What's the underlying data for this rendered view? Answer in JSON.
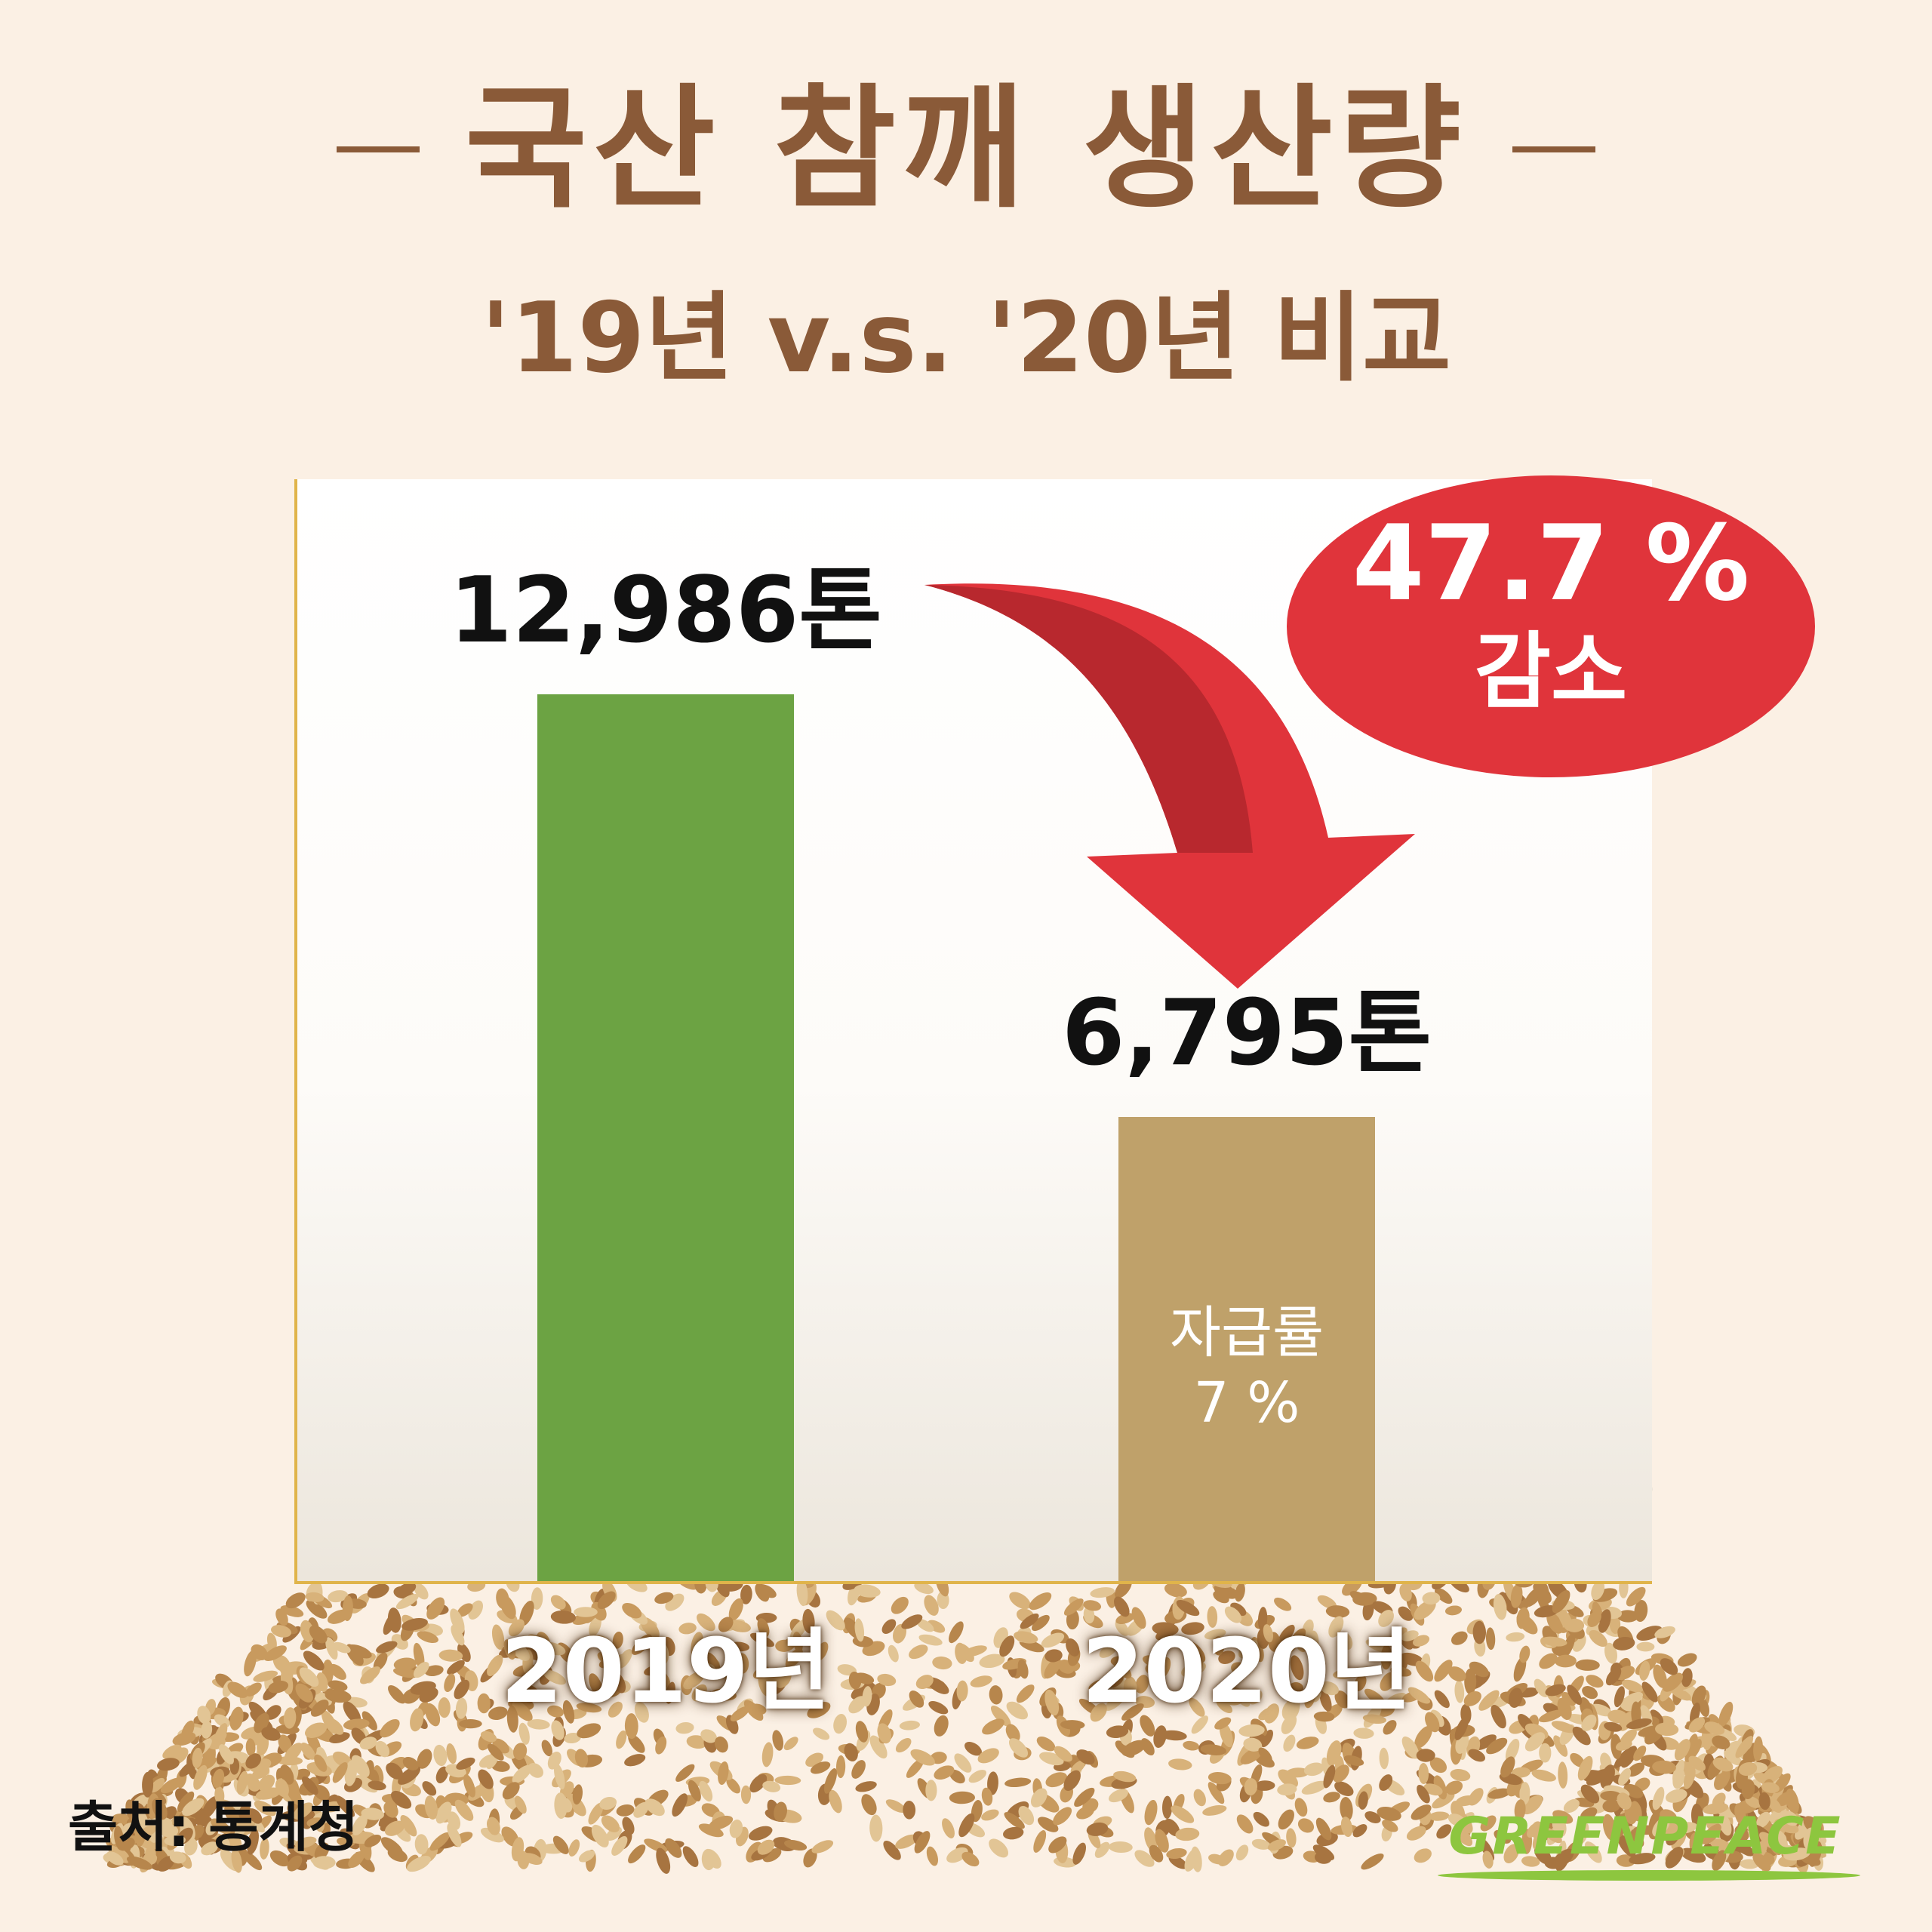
{
  "header": {
    "title_dash": "–",
    "title": "국산 참깨 생산량",
    "subtitle": "'19년 v.s. '20년 비교"
  },
  "callout": {
    "percent": "47.7 %",
    "word": "감소"
  },
  "source": "출처: 통계청",
  "logo": "GREENPEACE",
  "colors": {
    "title": "#8a5a38",
    "bar_2019": "#6ca343",
    "bar_2020": "#bfa16a",
    "callout": "#e0343b",
    "logo": "#8dc63f"
  },
  "chart_data": {
    "type": "bar",
    "title": "국산 참깨 생산량",
    "subtitle": "'19년 v.s. '20년 비교",
    "categories": [
      "2019",
      "2020"
    ],
    "category_labels": [
      "2019년",
      "2020년"
    ],
    "values": [
      12986,
      6795
    ],
    "value_labels": [
      "12,986톤",
      "6,795톤"
    ],
    "unit": "톤",
    "inner_label": {
      "line1": "자급률",
      "line2": "7 %"
    },
    "annotation": "47.7 % 감소",
    "grid": false,
    "legend": "none"
  }
}
